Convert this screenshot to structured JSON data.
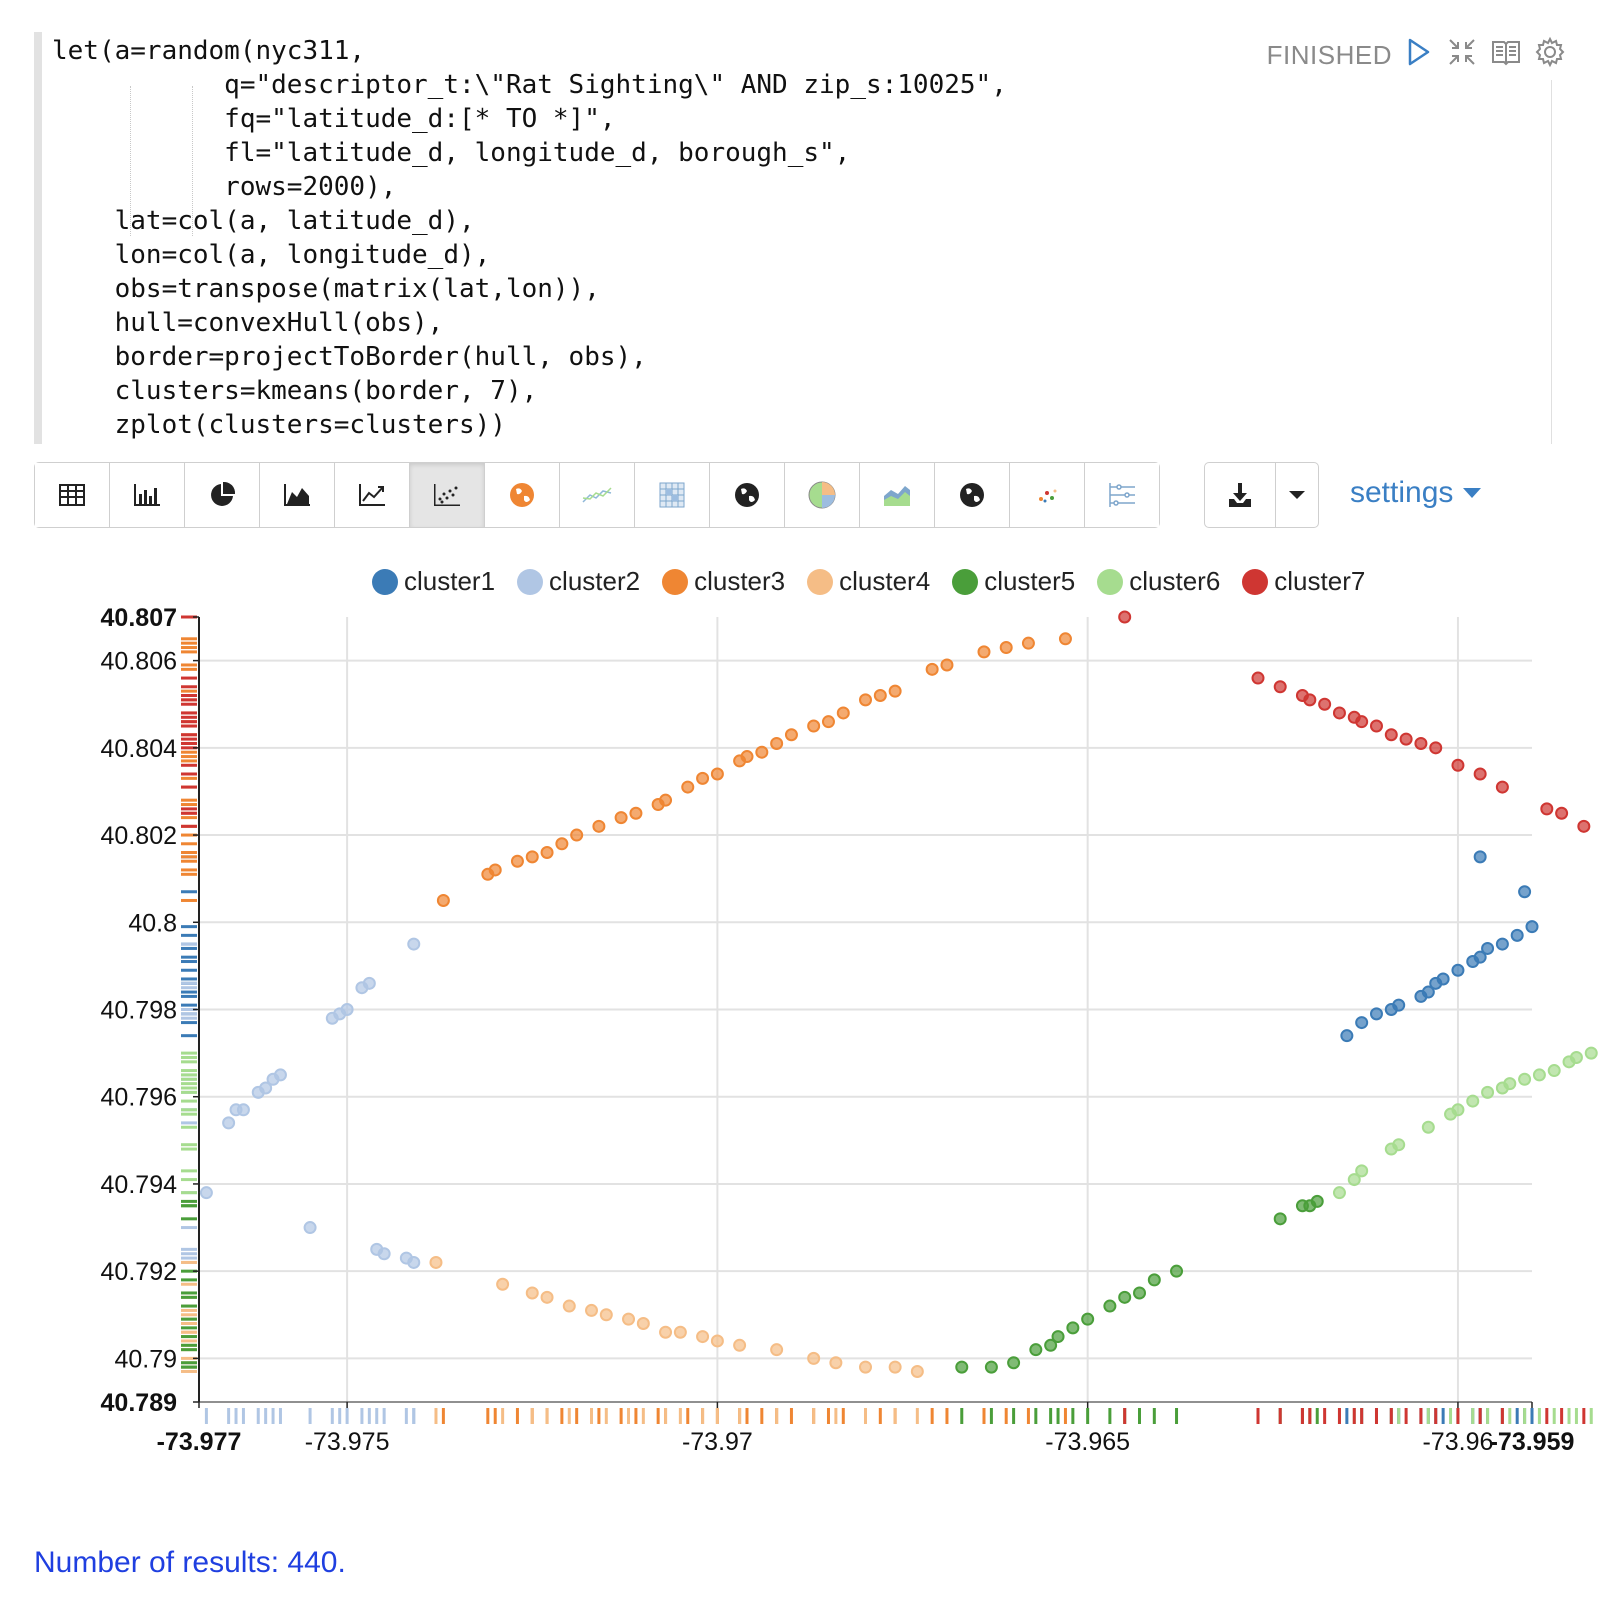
{
  "paragraph": {
    "code_lines": [
      "let(a=random(nyc311,",
      "           q=\"descriptor_t:\\\"Rat Sighting\\\" AND zip_s:10025\",",
      "           fq=\"latitude_d:[* TO *]\",",
      "           fl=\"latitude_d, longitude_d, borough_s\",",
      "           rows=2000),",
      "    lat=col(a, latitude_d),",
      "    lon=col(a, longitude_d),",
      "    obs=transpose(matrix(lat,lon)),",
      "    hull=convexHull(obs),",
      "    border=projectToBorder(hull, obs),",
      "    clusters=kmeans(border, 7),",
      "    zplot(clusters=clusters))"
    ],
    "status": "FINISHED",
    "header_icons": [
      "run-icon",
      "collapse-icon",
      "book-icon",
      "gear-icon"
    ]
  },
  "toolbar": {
    "view_buttons": [
      "table-icon",
      "bar-chart-icon",
      "pie-chart-icon",
      "area-chart-icon",
      "line-chart-icon",
      "scatter-chart-icon",
      "orange-globe-icon",
      "sparkline-icon",
      "heatmap-grid-icon",
      "globe-icon",
      "pie-multicolor-icon",
      "stacked-area-icon",
      "globe-icon",
      "bubble-icon",
      "parallel-axes-icon"
    ],
    "active_index": 5,
    "download_icon": "download-icon",
    "settings_label": "settings"
  },
  "colors": {
    "cluster1": "#3b7bb6",
    "cluster2": "#b0c6e4",
    "cluster3": "#ef8633",
    "cluster4": "#f5bd86",
    "cluster5": "#4a9e3a",
    "cluster6": "#a6dc8f",
    "cluster7": "#cf3632",
    "link": "#1f3fe0"
  },
  "chart_data": {
    "type": "scatter",
    "xlim": [
      -73.977,
      -73.959
    ],
    "ylim": [
      40.789,
      40.807
    ],
    "x_ticks": [
      "-73.977",
      "-73.975",
      "-73.97",
      "-73.965",
      "-73.96",
      "-73.959"
    ],
    "y_ticks": [
      "40.807",
      "40.806",
      "40.804",
      "40.802",
      "40.8",
      "40.798",
      "40.796",
      "40.794",
      "40.792",
      "40.79",
      "40.789"
    ],
    "grid": true,
    "legend_position": "top",
    "series": [
      {
        "name": "cluster1",
        "points": [
          [
            -73.9597,
            40.8015
          ],
          [
            -73.9591,
            40.8007
          ],
          [
            -73.959,
            40.7999
          ],
          [
            -73.9594,
            40.7995
          ],
          [
            -73.9597,
            40.7992
          ],
          [
            -73.96,
            40.7989
          ],
          [
            -73.9603,
            40.7986
          ],
          [
            -73.9605,
            40.7983
          ],
          [
            -73.9609,
            40.798
          ],
          [
            -73.9613,
            40.7977
          ],
          [
            -73.9615,
            40.7974
          ],
          [
            -73.9598,
            40.7991
          ],
          [
            -73.9604,
            40.7984
          ],
          [
            -73.9608,
            40.7981
          ],
          [
            -73.9611,
            40.7979
          ],
          [
            -73.9592,
            40.7997
          ],
          [
            -73.9596,
            40.7994
          ],
          [
            -73.9602,
            40.7987
          ]
        ]
      },
      {
        "name": "cluster2",
        "points": [
          [
            -73.9766,
            40.7954
          ],
          [
            -73.9765,
            40.7957
          ],
          [
            -73.9764,
            40.7957
          ],
          [
            -73.9762,
            40.7961
          ],
          [
            -73.9761,
            40.7962
          ],
          [
            -73.976,
            40.7964
          ],
          [
            -73.9759,
            40.7965
          ],
          [
            -73.9752,
            40.7978
          ],
          [
            -73.9751,
            40.7979
          ],
          [
            -73.975,
            40.798
          ],
          [
            -73.9748,
            40.7985
          ],
          [
            -73.9747,
            40.7986
          ],
          [
            -73.9741,
            40.7995
          ],
          [
            -73.9769,
            40.7938
          ],
          [
            -73.9755,
            40.793
          ],
          [
            -73.9746,
            40.7925
          ],
          [
            -73.9745,
            40.7924
          ],
          [
            -73.9742,
            40.7923
          ],
          [
            -73.9741,
            40.7922
          ]
        ]
      },
      {
        "name": "cluster3",
        "points": [
          [
            -73.9737,
            40.8005
          ],
          [
            -73.9731,
            40.8011
          ],
          [
            -73.973,
            40.8012
          ],
          [
            -73.9727,
            40.8014
          ],
          [
            -73.9725,
            40.8015
          ],
          [
            -73.9723,
            40.8016
          ],
          [
            -73.9721,
            40.8018
          ],
          [
            -73.9719,
            40.802
          ],
          [
            -73.9716,
            40.8022
          ],
          [
            -73.9713,
            40.8024
          ],
          [
            -73.9711,
            40.8025
          ],
          [
            -73.9708,
            40.8027
          ],
          [
            -73.9707,
            40.8028
          ],
          [
            -73.9704,
            40.8031
          ],
          [
            -73.9702,
            40.8033
          ],
          [
            -73.97,
            40.8034
          ],
          [
            -73.9697,
            40.8037
          ],
          [
            -73.9696,
            40.8038
          ],
          [
            -73.9694,
            40.8039
          ],
          [
            -73.9692,
            40.8041
          ],
          [
            -73.969,
            40.8043
          ],
          [
            -73.9687,
            40.8045
          ],
          [
            -73.9685,
            40.8046
          ],
          [
            -73.9683,
            40.8048
          ],
          [
            -73.968,
            40.8051
          ],
          [
            -73.9678,
            40.8052
          ],
          [
            -73.9676,
            40.8053
          ],
          [
            -73.9671,
            40.8058
          ],
          [
            -73.9669,
            40.8059
          ],
          [
            -73.9664,
            40.8062
          ],
          [
            -73.9661,
            40.8063
          ],
          [
            -73.9658,
            40.8064
          ],
          [
            -73.9653,
            40.8065
          ]
        ]
      },
      {
        "name": "cluster4",
        "points": [
          [
            -73.9738,
            40.7922
          ],
          [
            -73.9729,
            40.7917
          ],
          [
            -73.9725,
            40.7915
          ],
          [
            -73.9723,
            40.7914
          ],
          [
            -73.972,
            40.7912
          ],
          [
            -73.9717,
            40.7911
          ],
          [
            -73.9715,
            40.791
          ],
          [
            -73.9712,
            40.7909
          ],
          [
            -73.971,
            40.7908
          ],
          [
            -73.9707,
            40.7906
          ],
          [
            -73.9705,
            40.7906
          ],
          [
            -73.9702,
            40.7905
          ],
          [
            -73.97,
            40.7904
          ],
          [
            -73.9697,
            40.7903
          ],
          [
            -73.9692,
            40.7902
          ],
          [
            -73.9687,
            40.79
          ],
          [
            -73.9684,
            40.7899
          ],
          [
            -73.968,
            40.7898
          ],
          [
            -73.9676,
            40.7898
          ],
          [
            -73.9673,
            40.7897
          ]
        ]
      },
      {
        "name": "cluster5",
        "points": [
          [
            -73.9667,
            40.7898
          ],
          [
            -73.9663,
            40.7898
          ],
          [
            -73.966,
            40.7899
          ],
          [
            -73.9657,
            40.7902
          ],
          [
            -73.9655,
            40.7903
          ],
          [
            -73.9654,
            40.7905
          ],
          [
            -73.9652,
            40.7907
          ],
          [
            -73.965,
            40.7909
          ],
          [
            -73.9647,
            40.7912
          ],
          [
            -73.9645,
            40.7914
          ],
          [
            -73.9643,
            40.7915
          ],
          [
            -73.9641,
            40.7918
          ],
          [
            -73.9638,
            40.792
          ],
          [
            -73.9624,
            40.7932
          ],
          [
            -73.9621,
            40.7935
          ],
          [
            -73.962,
            40.7935
          ],
          [
            -73.9619,
            40.7936
          ]
        ]
      },
      {
        "name": "cluster6",
        "points": [
          [
            -73.9616,
            40.7938
          ],
          [
            -73.9614,
            40.7941
          ],
          [
            -73.9613,
            40.7943
          ],
          [
            -73.9609,
            40.7948
          ],
          [
            -73.9608,
            40.7949
          ],
          [
            -73.9604,
            40.7953
          ],
          [
            -73.9601,
            40.7956
          ],
          [
            -73.96,
            40.7957
          ],
          [
            -73.9598,
            40.7959
          ],
          [
            -73.9596,
            40.7961
          ],
          [
            -73.9594,
            40.7962
          ],
          [
            -73.9593,
            40.7963
          ],
          [
            -73.9591,
            40.7964
          ],
          [
            -73.9589,
            40.7965
          ],
          [
            -73.9587,
            40.7966
          ],
          [
            -73.9585,
            40.7968
          ],
          [
            -73.9584,
            40.7969
          ],
          [
            -73.9582,
            40.797
          ]
        ]
      },
      {
        "name": "cluster7",
        "points": [
          [
            -73.9645,
            40.807
          ],
          [
            -73.9627,
            40.8056
          ],
          [
            -73.9624,
            40.8054
          ],
          [
            -73.9621,
            40.8052
          ],
          [
            -73.962,
            40.8051
          ],
          [
            -73.9618,
            40.805
          ],
          [
            -73.9616,
            40.8048
          ],
          [
            -73.9614,
            40.8047
          ],
          [
            -73.9613,
            40.8046
          ],
          [
            -73.9611,
            40.8045
          ],
          [
            -73.9609,
            40.8043
          ],
          [
            -73.9607,
            40.8042
          ],
          [
            -73.9605,
            40.8041
          ],
          [
            -73.9603,
            40.804
          ],
          [
            -73.96,
            40.8036
          ],
          [
            -73.9597,
            40.8034
          ],
          [
            -73.9594,
            40.8031
          ],
          [
            -73.9588,
            40.8026
          ],
          [
            -73.9586,
            40.8025
          ],
          [
            -73.9583,
            40.8022
          ]
        ]
      }
    ]
  },
  "footer": {
    "results_text": "Number of results: 440."
  }
}
